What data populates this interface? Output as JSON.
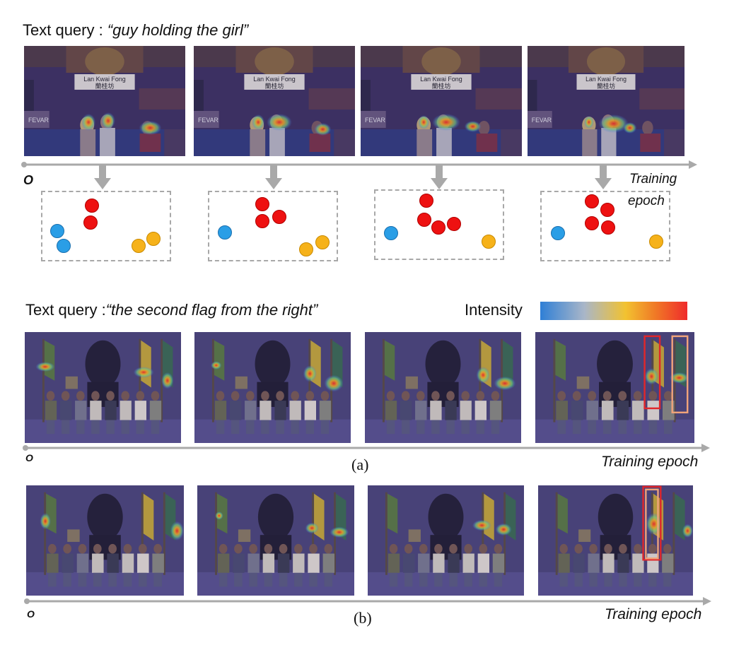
{
  "section_top": {
    "query_prefix": "Text query : ",
    "query_text": "“guy holding the girl”",
    "origin_label": "O",
    "axis_label_line1": "Training",
    "axis_label_line2": "epoch",
    "panels": [
      {
        "sign_en": "Lan Kwai Fong",
        "sign_zh": "蘭桂坊",
        "store": "FEVAR"
      },
      {
        "sign_en": "Lan Kwai Fong",
        "sign_zh": "蘭桂坊",
        "store": "FEVAR"
      },
      {
        "sign_en": "Lan Kwai Fong",
        "sign_zh": "蘭桂坊",
        "store": "FEVAR"
      },
      {
        "sign_en": "Lan Kwai Fong",
        "sign_zh": "蘭桂坊",
        "store": "FEVAR"
      }
    ]
  },
  "section_a": {
    "query_prefix": "Text query :",
    "query_text": "“the second flag from the right”",
    "intensity_label": "Intensity",
    "origin_label": "O",
    "axis_label": "Training epoch",
    "caption": "(a)"
  },
  "section_b": {
    "origin_label": "O",
    "axis_label": "Training epoch",
    "caption": "(b)"
  },
  "colors": {
    "arrow_gray": "#a9a9a9",
    "cluster_red": "#ee1111",
    "cluster_blue": "#2a9ee6",
    "cluster_orange": "#f6b21a",
    "box_red": "#e0262b",
    "box_peach": "#f0a37a"
  }
}
